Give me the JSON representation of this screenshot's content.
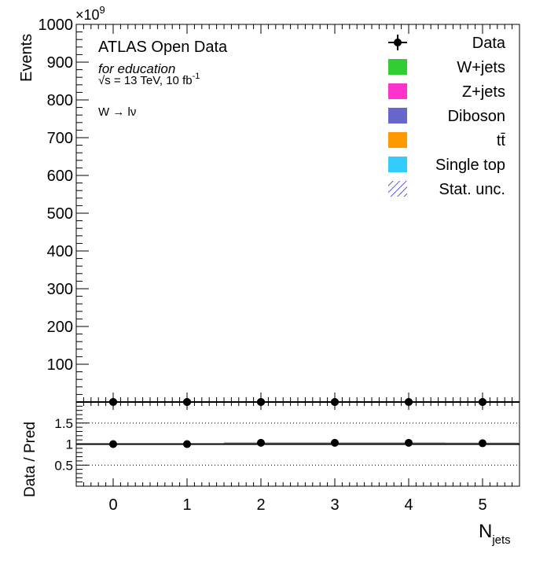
{
  "chart_data": [
    {
      "type": "bar",
      "subtype": "stacked-histogram-with-data-points",
      "ylabel": "Events",
      "y_exponent": "×10",
      "y_exponent_power": "9",
      "ylim": [
        0,
        1000
      ],
      "yticks": [
        "100",
        "200",
        "300",
        "400",
        "500",
        "600",
        "700",
        "800",
        "900",
        "1000"
      ],
      "annotations": {
        "experiment": "ATLAS Open Data",
        "subtitle": "for education",
        "energy": "√s = 13 TeV, 10 fb",
        "energy_sup": "-1",
        "channel": "W → lν"
      },
      "legend_position": "top-right",
      "legend": [
        {
          "name": "Data",
          "type": "marker",
          "color": "#000000"
        },
        {
          "name": "W+jets",
          "type": "fill",
          "color": "#33cc33"
        },
        {
          "name": "Z+jets",
          "type": "fill",
          "color": "#ff33cc"
        },
        {
          "name": "Diboson",
          "type": "fill",
          "color": "#6666cc"
        },
        {
          "name": "tt̄",
          "type": "fill",
          "color": "#ff9900"
        },
        {
          "name": "Single top",
          "type": "fill",
          "color": "#33ccff"
        },
        {
          "name": "Stat. unc.",
          "type": "hatch",
          "color": "#0000cc"
        }
      ],
      "categories": [
        "0",
        "1",
        "2",
        "3",
        "4",
        "5"
      ],
      "series": [
        {
          "name": "Data",
          "values": [
            0,
            0,
            0,
            0,
            0,
            0
          ]
        }
      ]
    },
    {
      "type": "scatter",
      "subtype": "ratio",
      "ylabel": "Data / Pred",
      "xlabel": "N",
      "xlabel_sub": "jets",
      "ylim": [
        0,
        2
      ],
      "xlim": [
        -0.5,
        5.5
      ],
      "yticks": [
        "0.5",
        "1",
        "1.5"
      ],
      "xticks": [
        "0",
        "1",
        "2",
        "3",
        "4",
        "5"
      ],
      "gridlines_y": [
        0.5,
        1.0,
        1.5
      ],
      "x": [
        0,
        1,
        2,
        3,
        4,
        5
      ],
      "y": [
        1.0,
        1.0,
        1.03,
        1.03,
        1.03,
        1.02
      ],
      "upper_points_y": [
        2.0,
        2.0,
        2.0,
        2.0,
        2.0,
        2.0
      ]
    }
  ]
}
